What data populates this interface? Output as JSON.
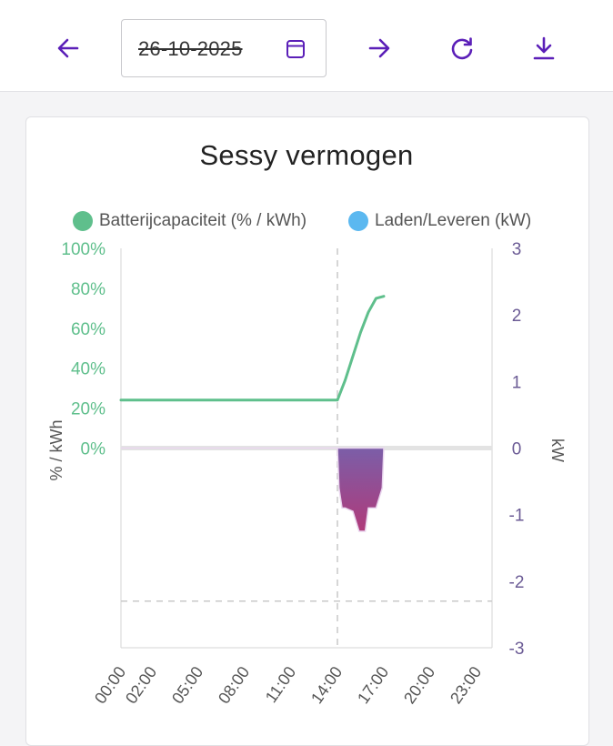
{
  "toolbar": {
    "prev_icon": "arrow-left-icon",
    "date_value": "26-10-2025",
    "calendar_icon": "calendar-icon",
    "next_icon": "arrow-right-icon",
    "refresh_icon": "refresh-icon",
    "download_icon": "download-icon",
    "accent_color": "#5b1fb8"
  },
  "chart_data": {
    "type": "line",
    "title": "Sessy vermogen",
    "x_tick_labels": [
      "00:00",
      "02:00",
      "05:00",
      "08:00",
      "11:00",
      "14:00",
      "17:00",
      "20:00",
      "23:00"
    ],
    "y_left": {
      "label": "% / kWh",
      "ticks": [
        "100%",
        "80%",
        "60%",
        "40%",
        "20%",
        "0%"
      ],
      "range": [
        -100,
        100
      ],
      "color": "#5fbf8c"
    },
    "y_right": {
      "label": "kW",
      "ticks": [
        "3",
        "2",
        "1",
        "0",
        "-1",
        "-2",
        "-3"
      ],
      "range": [
        -3,
        3
      ],
      "color": "#6b5b95"
    },
    "grid": false,
    "current_time_marker": "14:00",
    "reference_line_kw": -2.3,
    "legend": [
      {
        "name": "Batterijcapaciteit (% / kWh)",
        "color": "#5fbf8c"
      },
      {
        "name": "Laden/Leveren (kW)",
        "color": "#5bb8f0"
      }
    ],
    "series": [
      {
        "name": "Batterijcapaciteit (% / kWh)",
        "axis": "left",
        "type": "line",
        "color": "#5fbf8c",
        "x_hours": [
          0,
          14,
          14.5,
          15,
          15.5,
          16,
          16.5,
          17
        ],
        "values": [
          24,
          24,
          34,
          46,
          58,
          68,
          75,
          76
        ]
      },
      {
        "name": "Laden/Leveren (kW)",
        "axis": "right",
        "type": "area",
        "gradient": [
          "#7b5ea8",
          "#b03a7a"
        ],
        "x_hours": [
          0,
          14,
          14.1,
          14.3,
          14.5,
          15,
          15.4,
          15.8,
          16,
          16.5,
          16.9,
          17
        ],
        "values": [
          0,
          0,
          -0.6,
          -0.9,
          -0.9,
          -0.95,
          -1.25,
          -1.25,
          -0.9,
          -0.9,
          -0.6,
          0
        ]
      }
    ]
  }
}
